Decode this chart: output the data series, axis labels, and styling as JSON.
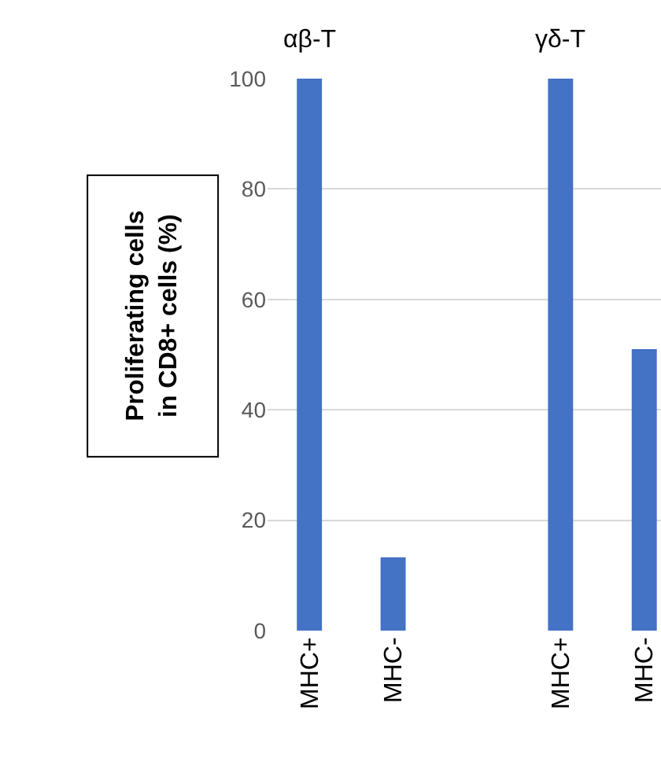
{
  "chart_data": {
    "type": "bar",
    "ylabel": "Proliferating cells\nin CD8+ cells (%)",
    "categories": [
      "MHC+",
      "MHC-",
      null,
      "MHC+",
      "MHC-"
    ],
    "values": [
      100,
      13.3,
      null,
      100,
      51
    ],
    "color": "#4472c4",
    "ylim": [
      0,
      100
    ],
    "yticks": [
      0,
      20,
      40,
      60,
      80,
      100
    ],
    "grid": "y",
    "annotations": [
      "αβ-T",
      "γδ-T"
    ]
  }
}
